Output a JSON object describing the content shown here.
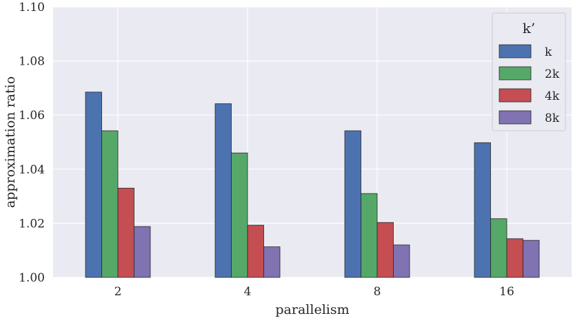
{
  "chart_data": {
    "type": "bar",
    "categories": [
      "2",
      "4",
      "8",
      "16"
    ],
    "series": [
      {
        "name": "k",
        "color": "#4c72b0",
        "values": [
          1.0685,
          1.0642,
          1.0542,
          1.0498
        ]
      },
      {
        "name": "2k",
        "color": "#55a868",
        "values": [
          1.0542,
          1.046,
          1.031,
          1.0217
        ]
      },
      {
        "name": "4k",
        "color": "#c44e52",
        "values": [
          1.033,
          1.0193,
          1.0203,
          1.0143
        ]
      },
      {
        "name": "8k",
        "color": "#8172b2",
        "values": [
          1.0188,
          1.0113,
          1.012,
          1.0137
        ]
      }
    ],
    "xlabel": "parallelism",
    "ylabel": "approximation ratio",
    "ylim": [
      1.0,
      1.1
    ],
    "yticks": [
      "1.00",
      "1.02",
      "1.04",
      "1.06",
      "1.08",
      "1.10"
    ],
    "grid": true,
    "legend": {
      "title": "k’",
      "placement": "top-right"
    },
    "colors": {
      "background": "#eaeaf2",
      "grid": "#ffffff",
      "bar_edge": "#262626"
    }
  }
}
